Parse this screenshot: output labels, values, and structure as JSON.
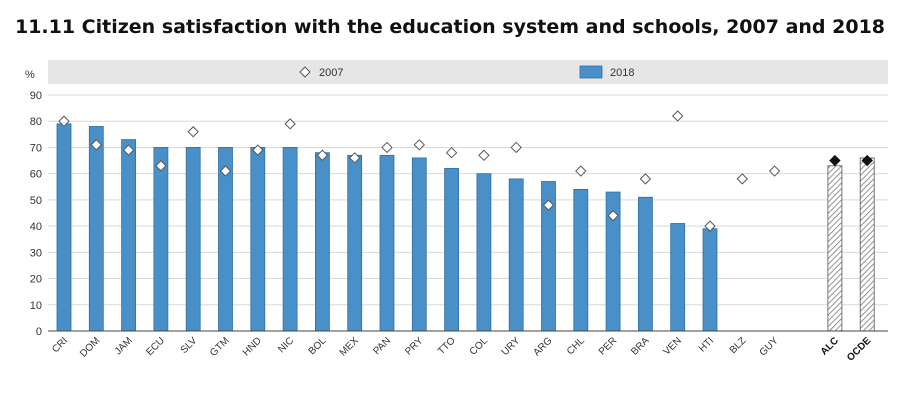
{
  "title": "11.11 Citizen satisfaction with the education system and schools, 2007 and 2018",
  "chart_data": {
    "type": "bar",
    "ylabel": "%",
    "ylim": [
      0,
      90
    ],
    "yticks": [
      0,
      10,
      20,
      30,
      40,
      50,
      60,
      70,
      80,
      90
    ],
    "grid": "horizontal",
    "legend_position": "top",
    "categories": [
      "CRI",
      "DOM",
      "JAM",
      "ECU",
      "SLV",
      "GTM",
      "HND",
      "NIC",
      "BOL",
      "MEX",
      "PAN",
      "PRY",
      "TTO",
      "COL",
      "URY",
      "ARG",
      "CHL",
      "PER",
      "BRA",
      "VEN",
      "HTI",
      "BLZ",
      "GUY",
      "ALC",
      "OCDE"
    ],
    "highlight_categories": [
      "ALC",
      "OCDE"
    ],
    "series": [
      {
        "name": "2018",
        "kind": "bar",
        "color": "#4a90c8",
        "values": [
          79,
          78,
          73,
          70,
          70,
          70,
          70,
          70,
          68,
          67,
          67,
          66,
          62,
          60,
          58,
          57,
          54,
          53,
          51,
          41,
          39,
          null,
          null,
          63,
          66
        ]
      },
      {
        "name": "2007",
        "kind": "marker",
        "marker": "diamond",
        "values": [
          80,
          71,
          69,
          63,
          76,
          61,
          69,
          79,
          67,
          66,
          70,
          71,
          68,
          67,
          70,
          48,
          61,
          44,
          58,
          82,
          40,
          58,
          61,
          65,
          65
        ]
      }
    ]
  }
}
